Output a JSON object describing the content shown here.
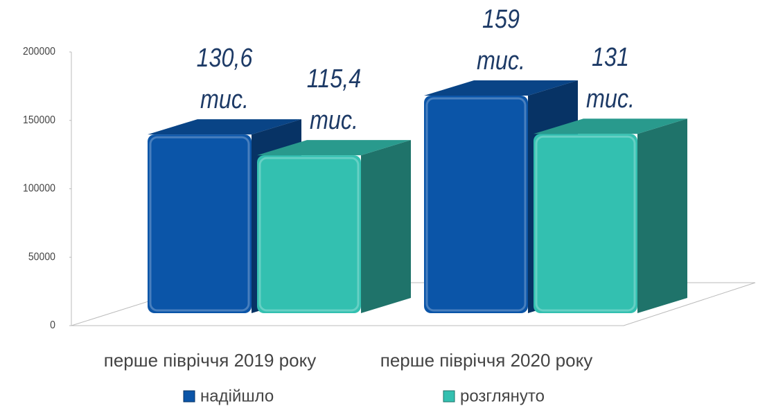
{
  "chart_data": {
    "type": "bar3d",
    "categories": [
      "перше півріччя 2019 року",
      "перше півріччя 2020 року"
    ],
    "series": [
      {
        "name": "надійшло",
        "color": "#0b55a8",
        "values": [
          130600,
          159000
        ],
        "value_labels": [
          "130,6 тис.",
          "159 тис."
        ]
      },
      {
        "name": "розглянуто",
        "color": "#33c0b0",
        "values": [
          115400,
          131000
        ],
        "value_labels": [
          "115,4 тис.",
          "131 тис."
        ]
      }
    ],
    "ylim": [
      0,
      200000
    ],
    "yticks": [
      0,
      50000,
      100000,
      150000,
      200000
    ],
    "legend": "bottom"
  }
}
